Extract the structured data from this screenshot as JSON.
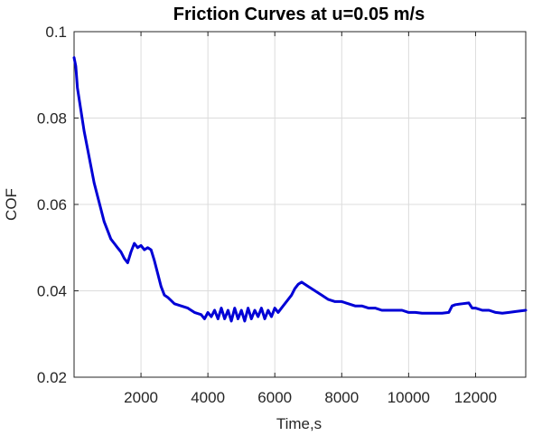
{
  "chart_data": {
    "type": "line",
    "title": "Friction Curves at u=0.05 m/s",
    "xlabel": "Time,s",
    "ylabel": "COF",
    "xlim": [
      0,
      13500
    ],
    "ylim": [
      0.02,
      0.1
    ],
    "xticks": [
      2000,
      4000,
      6000,
      8000,
      10000,
      12000
    ],
    "yticks": [
      0.02,
      0.04,
      0.06,
      0.08,
      0.1
    ],
    "xtick_labels": [
      "2000",
      "4000",
      "6000",
      "8000",
      "10000",
      "12000"
    ],
    "ytick_labels": [
      "0.02",
      "0.04",
      "0.06",
      "0.08",
      "0.1"
    ],
    "grid": true,
    "colors": {
      "series": "#0000d6",
      "grid": "#dcdcdc",
      "axis": "#262626"
    },
    "series": [
      {
        "x": [
          0,
          50,
          100,
          200,
          300,
          400,
          500,
          600,
          700,
          800,
          900,
          1000,
          1100,
          1200,
          1300,
          1400,
          1500,
          1600,
          1700,
          1800,
          1900,
          2000,
          2100,
          2200,
          2300,
          2400,
          2500,
          2600,
          2700,
          2800,
          3000,
          3200,
          3400,
          3600,
          3800,
          3900,
          4000,
          4100,
          4200,
          4300,
          4400,
          4500,
          4600,
          4700,
          4800,
          4900,
          5000,
          5100,
          5200,
          5300,
          5400,
          5500,
          5600,
          5700,
          5800,
          5900,
          6000,
          6100,
          6200,
          6300,
          6400,
          6500,
          6600,
          6700,
          6800,
          7000,
          7200,
          7400,
          7600,
          7800,
          8000,
          8200,
          8400,
          8600,
          8800,
          9000,
          9200,
          9400,
          9600,
          9800,
          10000,
          10200,
          10400,
          10600,
          10800,
          11000,
          11200,
          11300,
          11400,
          11600,
          11800,
          11900,
          12000,
          12200,
          12400,
          12600,
          12800,
          13000,
          13200,
          13500
        ],
        "y": [
          0.094,
          0.092,
          0.087,
          0.082,
          0.077,
          0.073,
          0.069,
          0.065,
          0.062,
          0.059,
          0.056,
          0.054,
          0.052,
          0.051,
          0.05,
          0.049,
          0.0475,
          0.0465,
          0.049,
          0.051,
          0.05,
          0.0505,
          0.0495,
          0.05,
          0.0495,
          0.047,
          0.044,
          0.041,
          0.039,
          0.0385,
          0.037,
          0.0365,
          0.036,
          0.035,
          0.0345,
          0.0335,
          0.035,
          0.034,
          0.0355,
          0.0335,
          0.036,
          0.0335,
          0.0355,
          0.033,
          0.036,
          0.0335,
          0.0355,
          0.033,
          0.036,
          0.0335,
          0.0355,
          0.034,
          0.036,
          0.0335,
          0.0355,
          0.034,
          0.036,
          0.035,
          0.036,
          0.037,
          0.038,
          0.039,
          0.0405,
          0.0415,
          0.042,
          0.041,
          0.04,
          0.039,
          0.038,
          0.0375,
          0.0375,
          0.037,
          0.0365,
          0.0365,
          0.036,
          0.036,
          0.0355,
          0.0355,
          0.0355,
          0.0355,
          0.035,
          0.035,
          0.0348,
          0.0348,
          0.0348,
          0.0348,
          0.035,
          0.0365,
          0.0368,
          0.037,
          0.0372,
          0.036,
          0.036,
          0.0355,
          0.0355,
          0.035,
          0.0348,
          0.035,
          0.0352,
          0.0355
        ]
      }
    ]
  }
}
